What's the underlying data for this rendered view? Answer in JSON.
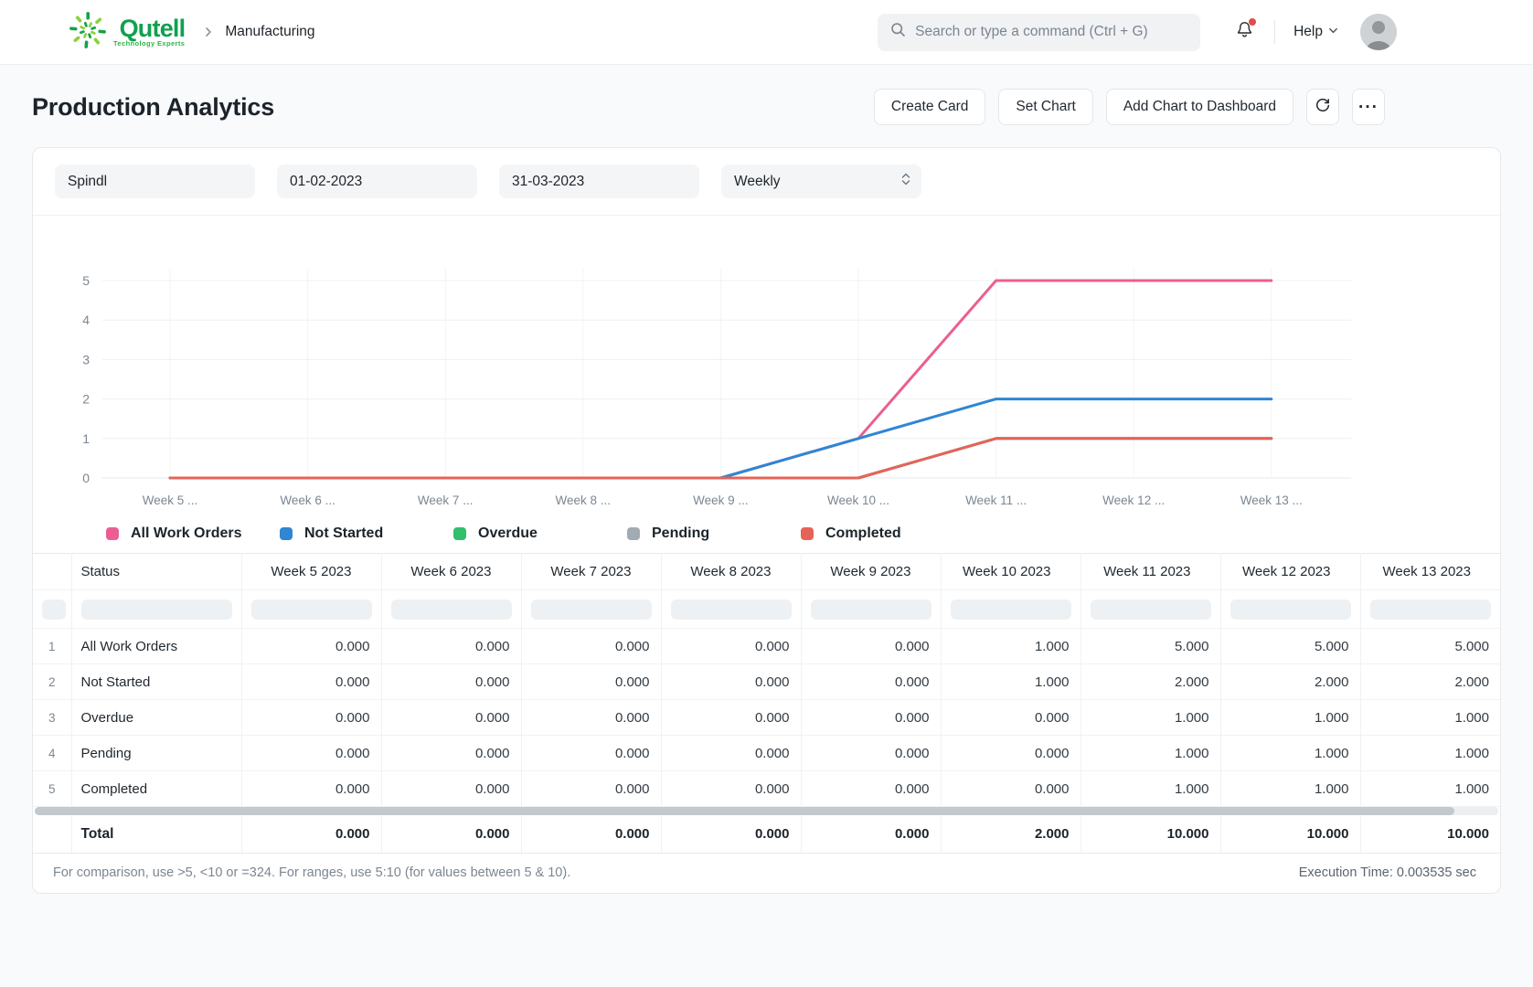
{
  "nav": {
    "logo_text": "Qutell",
    "logo_tagline": "Technology Experts",
    "breadcrumb": "Manufacturing",
    "search_placeholder": "Search or type a command (Ctrl + G)",
    "help_label": "Help"
  },
  "header": {
    "title": "Production Analytics",
    "buttons": {
      "create_card": "Create Card",
      "set_chart": "Set Chart",
      "add_chart": "Add Chart to Dashboard"
    }
  },
  "icons": {
    "more_glyph": "···"
  },
  "filters": {
    "name": "Spindl",
    "from_date": "01-02-2023",
    "to_date": "31-03-2023",
    "range": "Weekly"
  },
  "chart_data": {
    "type": "line",
    "x": [
      "Week 5 ...",
      "Week 6 ...",
      "Week 7 ...",
      "Week 8 ...",
      "Week 9 ...",
      "Week 10 ...",
      "Week 11 ...",
      "Week 12 ...",
      "Week 13 ..."
    ],
    "series": [
      {
        "name": "All Work Orders",
        "color": "#ec5e92",
        "values": [
          0,
          0,
          0,
          0,
          0,
          1,
          5,
          5,
          5
        ]
      },
      {
        "name": "Not Started",
        "color": "#2f86d3",
        "values": [
          0,
          0,
          0,
          0,
          0,
          1,
          2,
          2,
          2
        ]
      },
      {
        "name": "Overdue",
        "color": "#30bf6e",
        "values": [
          0,
          0,
          0,
          0,
          0,
          0,
          1,
          1,
          1
        ]
      },
      {
        "name": "Pending",
        "color": "#a2abb3",
        "values": [
          0,
          0,
          0,
          0,
          0,
          0,
          1,
          1,
          1
        ]
      },
      {
        "name": "Completed",
        "color": "#e66358",
        "values": [
          0,
          0,
          0,
          0,
          0,
          0,
          1,
          1,
          1
        ]
      }
    ],
    "ylim": [
      0,
      5
    ],
    "yticks": [
      0,
      1,
      2,
      3,
      4,
      5
    ],
    "grid": true,
    "legend_position": "bottom"
  },
  "table": {
    "columns": [
      "",
      "Status",
      "Week 5 2023",
      "Week 6 2023",
      "Week 7 2023",
      "Week 8 2023",
      "Week 9 2023",
      "Week 10 2023",
      "Week 11 2023",
      "Week 12 2023",
      "Week 13 2023"
    ],
    "rows": [
      {
        "num": "1",
        "status": "All Work Orders",
        "values": [
          "0.000",
          "0.000",
          "0.000",
          "0.000",
          "0.000",
          "1.000",
          "5.000",
          "5.000",
          "5.000"
        ]
      },
      {
        "num": "2",
        "status": "Not Started",
        "values": [
          "0.000",
          "0.000",
          "0.000",
          "0.000",
          "0.000",
          "1.000",
          "2.000",
          "2.000",
          "2.000"
        ]
      },
      {
        "num": "3",
        "status": "Overdue",
        "values": [
          "0.000",
          "0.000",
          "0.000",
          "0.000",
          "0.000",
          "0.000",
          "1.000",
          "1.000",
          "1.000"
        ]
      },
      {
        "num": "4",
        "status": "Pending",
        "values": [
          "0.000",
          "0.000",
          "0.000",
          "0.000",
          "0.000",
          "0.000",
          "1.000",
          "1.000",
          "1.000"
        ]
      },
      {
        "num": "5",
        "status": "Completed",
        "values": [
          "0.000",
          "0.000",
          "0.000",
          "0.000",
          "0.000",
          "0.000",
          "1.000",
          "1.000",
          "1.000"
        ]
      }
    ],
    "total": {
      "label": "Total",
      "values": [
        "0.000",
        "0.000",
        "0.000",
        "0.000",
        "0.000",
        "2.000",
        "10.000",
        "10.000",
        "10.000"
      ]
    }
  },
  "footer": {
    "hint": "For comparison, use >5, <10 or =324. For ranges, use 5:10 (for values between 5 & 10).",
    "execution_time": "Execution Time: 0.003535 sec"
  }
}
